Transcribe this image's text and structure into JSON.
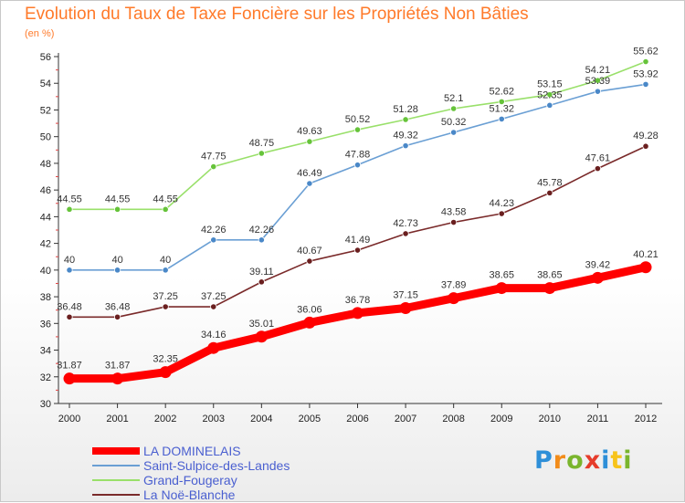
{
  "header": {
    "title": "Evolution du Taux de Taxe Foncière sur les Propriétés Non Bâties",
    "subtitle": "(en %)"
  },
  "logo": {
    "text": "Proxiti",
    "colors": [
      "#2e8fd8",
      "#f28c1a",
      "#7ab52d",
      "#e63c2b",
      "#2e8fd8",
      "#f7c31a",
      "#7ab52d"
    ]
  },
  "chart_data": {
    "type": "line",
    "x": [
      "2000",
      "2001",
      "2002",
      "2003",
      "2004",
      "2005",
      "2006",
      "2007",
      "2008",
      "2009",
      "2010",
      "2011",
      "2012"
    ],
    "ylim": [
      30,
      56
    ],
    "yticks": [
      30,
      32,
      34,
      36,
      38,
      40,
      42,
      44,
      46,
      48,
      50,
      52,
      54,
      56
    ],
    "grid": false,
    "legend_position": "bottom-left",
    "series": [
      {
        "name": "LA DOMINELAIS",
        "color": "#ff0000",
        "thick": true,
        "values": [
          31.87,
          31.87,
          32.35,
          34.16,
          35.01,
          36.06,
          36.78,
          37.15,
          37.89,
          38.65,
          38.65,
          39.42,
          40.21
        ],
        "labels": [
          "31.87",
          "31.87",
          "32.35",
          "34.16",
          "35.01",
          "36.06",
          "36.78",
          "37.15",
          "37.89",
          "38.65",
          "38.65",
          "39.42",
          "40.21"
        ]
      },
      {
        "name": "Saint-Sulpice-des-Landes",
        "color": "#6a9fd4",
        "marker": "#4a88c8",
        "thick": false,
        "values": [
          40,
          40,
          40,
          42.26,
          42.26,
          46.49,
          47.88,
          49.32,
          50.32,
          51.32,
          52.35,
          53.39,
          53.92
        ],
        "labels": [
          "40",
          "40",
          "40",
          "42.26",
          "42.26",
          "46.49",
          "47.88",
          "49.32",
          "50.32",
          "51.32",
          "52.35",
          "53.39",
          "53.92"
        ]
      },
      {
        "name": "Grand-Fougeray",
        "color": "#99e06a",
        "marker": "#66c33a",
        "thick": false,
        "values": [
          44.55,
          44.55,
          44.55,
          47.75,
          48.75,
          49.63,
          50.52,
          51.28,
          52.1,
          52.62,
          53.15,
          54.21,
          55.62
        ],
        "labels": [
          "44.55",
          "44.55",
          "44.55",
          "47.75",
          "48.75",
          "49.63",
          "50.52",
          "51.28",
          "52.1",
          "52.62",
          "53.15",
          "54.21",
          "55.62"
        ]
      },
      {
        "name": "La Noë-Blanche",
        "color": "#7a2a2a",
        "marker": "#6a1f1f",
        "thick": false,
        "values": [
          36.48,
          36.48,
          37.25,
          37.25,
          39.11,
          40.67,
          41.49,
          42.73,
          43.58,
          44.23,
          45.78,
          47.61,
          49.28
        ],
        "labels": [
          "36.48",
          "36.48",
          "37.25",
          "37.25",
          "39.11",
          "40.67",
          "41.49",
          "42.73",
          "43.58",
          "44.23",
          "45.78",
          "47.61",
          "49.28"
        ]
      }
    ]
  }
}
